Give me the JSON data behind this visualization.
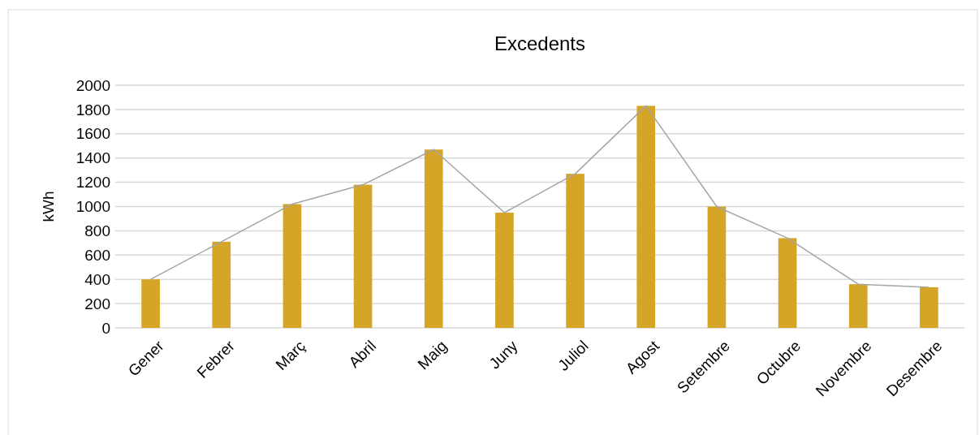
{
  "chart_data": {
    "type": "bar",
    "title": "Excedents",
    "ylabel": "kWh",
    "categories": [
      "Gener",
      "Febrer",
      "Març",
      "Abril",
      "Maig",
      "Juny",
      "Juliol",
      "Agost",
      "Setembre",
      "Octubre",
      "Novembre",
      "Desembre"
    ],
    "series": [
      {
        "color": "#d4a527",
        "values": [
          400,
          710,
          1020,
          1180,
          1470,
          950,
          1270,
          1830,
          1000,
          740,
          360,
          335
        ]
      },
      {
        "type": "line",
        "color": "#a5a5a5",
        "values": [
          400,
          710,
          1020,
          1180,
          1470,
          950,
          1270,
          1830,
          1000,
          740,
          360,
          335
        ]
      }
    ],
    "ylim": [
      0,
      2000
    ],
    "yticks": [
      0,
      200,
      400,
      600,
      800,
      1000,
      1200,
      1400,
      1600,
      1800,
      2000
    ],
    "grid": "y",
    "marker": "none"
  }
}
